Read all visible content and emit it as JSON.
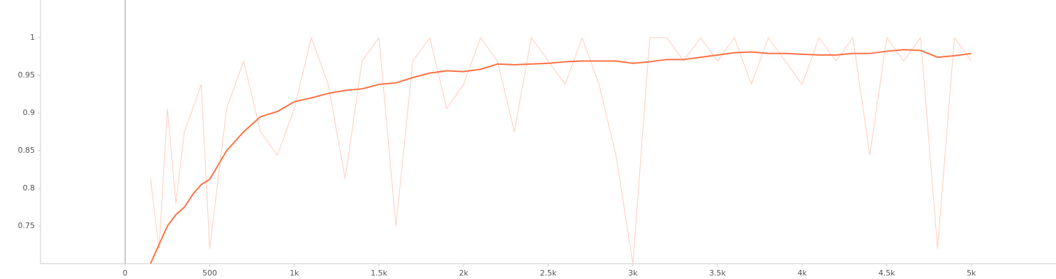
{
  "chart_data": {
    "type": "line",
    "x": [
      150,
      200,
      250,
      300,
      350,
      400,
      450,
      500,
      600,
      700,
      800,
      900,
      1000,
      1100,
      1200,
      1300,
      1400,
      1500,
      1600,
      1700,
      1800,
      1900,
      2000,
      2100,
      2200,
      2300,
      2400,
      2500,
      2600,
      2700,
      2800,
      2900,
      3000,
      3100,
      3200,
      3300,
      3400,
      3500,
      3600,
      3700,
      3800,
      3900,
      4000,
      4100,
      4200,
      4300,
      4400,
      4500,
      4600,
      4700,
      4800,
      4900,
      5000
    ],
    "series": [
      {
        "color": "#ffccbc",
        "values": [
          0.813,
          0.72,
          0.906,
          0.78,
          0.875,
          0.906,
          0.938,
          0.72,
          0.906,
          0.969,
          0.875,
          0.844,
          0.906,
          1.0,
          0.938,
          0.813,
          0.969,
          1.0,
          0.75,
          0.969,
          1.0,
          0.906,
          0.938,
          1.0,
          0.969,
          0.875,
          1.0,
          0.969,
          0.938,
          1.0,
          0.938,
          0.844,
          0.7,
          1.0,
          1.0,
          0.969,
          1.0,
          0.969,
          1.0,
          0.938,
          1.0,
          0.969,
          0.938,
          1.0,
          0.969,
          1.0,
          0.844,
          1.0,
          0.969,
          1.0,
          0.72,
          1.0,
          0.969
        ]
      },
      {
        "color": "#ff7043",
        "values": [
          0.7,
          0.725,
          0.75,
          0.765,
          0.775,
          0.792,
          0.805,
          0.812,
          0.85,
          0.875,
          0.895,
          0.902,
          0.915,
          0.92,
          0.926,
          0.93,
          0.932,
          0.938,
          0.94,
          0.947,
          0.953,
          0.956,
          0.955,
          0.958,
          0.965,
          0.964,
          0.965,
          0.966,
          0.968,
          0.969,
          0.969,
          0.969,
          0.966,
          0.968,
          0.971,
          0.971,
          0.974,
          0.977,
          0.98,
          0.981,
          0.979,
          0.979,
          0.978,
          0.977,
          0.977,
          0.979,
          0.979,
          0.982,
          0.984,
          0.983,
          0.974,
          0.976,
          0.979
        ]
      }
    ],
    "xlim": [
      -500,
      5500
    ],
    "ylim": [
      0.7,
      1.05
    ],
    "xticks": [
      0,
      500,
      {
        "value": 1000,
        "label": "1k"
      },
      {
        "value": 1500,
        "label": "1.5k"
      },
      {
        "value": 2000,
        "label": "2k"
      },
      {
        "value": 2500,
        "label": "2.5k"
      },
      {
        "value": 3000,
        "label": "3k"
      },
      {
        "value": 3500,
        "label": "3.5k"
      },
      {
        "value": 4000,
        "label": "4k"
      },
      {
        "value": 4500,
        "label": "4.5k"
      },
      {
        "value": 5000,
        "label": "5k"
      }
    ],
    "yticks": [
      0.75,
      0.8,
      0.85,
      0.9,
      0.95,
      1
    ],
    "grid": false
  }
}
